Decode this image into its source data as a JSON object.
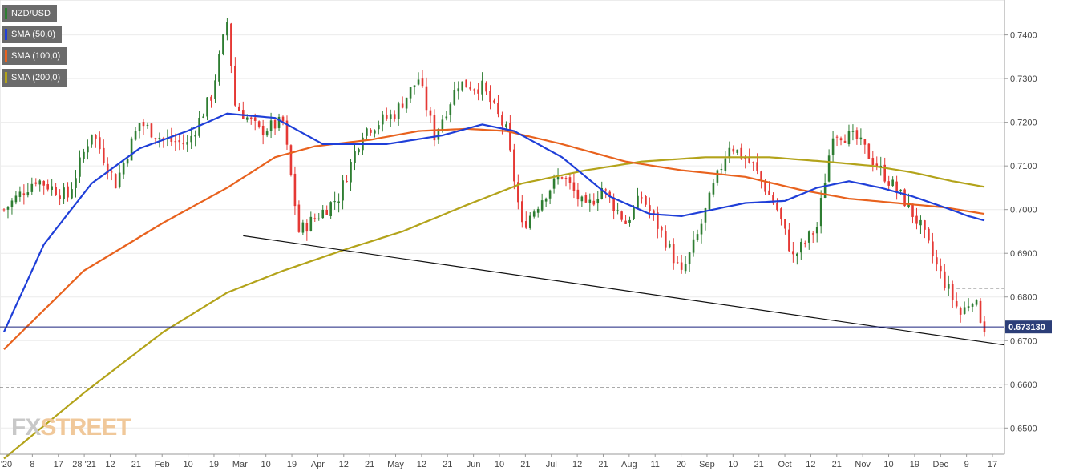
{
  "chart_data": {
    "type": "candlestick",
    "symbol": "NZD/USD",
    "ylim": [
      0.644,
      0.748
    ],
    "y_ticks": [
      "0.7400",
      "0.7300",
      "0.7200",
      "0.7100",
      "0.7000",
      "0.6900",
      "0.6800",
      "0.6700",
      "0.6600",
      "0.6500"
    ],
    "x_ticks": [
      "'20",
      "8",
      "17",
      "28 '21",
      "12",
      "21",
      "Feb",
      "10",
      "19",
      "Mar",
      "10",
      "19",
      "Apr",
      "12",
      "21",
      "May",
      "12",
      "21",
      "Jun",
      "10",
      "21",
      "Jul",
      "12",
      "21",
      "Aug",
      "11",
      "20",
      "Sep",
      "10",
      "21",
      "Oct",
      "12",
      "21",
      "Nov",
      "10",
      "19",
      "Dec",
      "9",
      "17"
    ],
    "last_price": "0.673130",
    "grid": true,
    "legend_position": "top-left",
    "legend": [
      {
        "label": "NZD/USD",
        "color": "#2e7d32"
      },
      {
        "label": "SMA (50,0)",
        "color": "#1f3fd8"
      },
      {
        "label": "SMA (100,0)",
        "color": "#e8621e"
      },
      {
        "label": "SMA (200,0)",
        "color": "#b3a31a"
      }
    ],
    "colors": {
      "up": "#2e7d32",
      "down": "#e53935",
      "sma50": "#1f3fd8",
      "sma100": "#e8621e",
      "sma200": "#b3a31a",
      "price_line": "#1a237e"
    },
    "sessions": 247,
    "close_anchors": [
      [
        0,
        0.7
      ],
      [
        8,
        0.707
      ],
      [
        16,
        0.703
      ],
      [
        22,
        0.718
      ],
      [
        28,
        0.706
      ],
      [
        34,
        0.72
      ],
      [
        40,
        0.716
      ],
      [
        46,
        0.715
      ],
      [
        52,
        0.726
      ],
      [
        56,
        0.743
      ],
      [
        58,
        0.724
      ],
      [
        64,
        0.718
      ],
      [
        70,
        0.72
      ],
      [
        74,
        0.695
      ],
      [
        78,
        0.698
      ],
      [
        84,
        0.703
      ],
      [
        90,
        0.718
      ],
      [
        98,
        0.722
      ],
      [
        104,
        0.73
      ],
      [
        108,
        0.717
      ],
      [
        114,
        0.729
      ],
      [
        120,
        0.728
      ],
      [
        126,
        0.718
      ],
      [
        130,
        0.696
      ],
      [
        136,
        0.704
      ],
      [
        140,
        0.708
      ],
      [
        146,
        0.7
      ],
      [
        150,
        0.705
      ],
      [
        156,
        0.697
      ],
      [
        160,
        0.703
      ],
      [
        166,
        0.693
      ],
      [
        170,
        0.685
      ],
      [
        174,
        0.694
      ],
      [
        178,
        0.705
      ],
      [
        182,
        0.715
      ],
      [
        188,
        0.71
      ],
      [
        194,
        0.7
      ],
      [
        198,
        0.689
      ],
      [
        204,
        0.696
      ],
      [
        208,
        0.718
      ],
      [
        214,
        0.716
      ],
      [
        220,
        0.709
      ],
      [
        226,
        0.702
      ],
      [
        230,
        0.696
      ],
      [
        234,
        0.687
      ],
      [
        240,
        0.676
      ],
      [
        243,
        0.68
      ],
      [
        246,
        0.6731
      ]
    ],
    "sma50": [
      [
        0,
        0.672
      ],
      [
        10,
        0.692
      ],
      [
        22,
        0.706
      ],
      [
        34,
        0.714
      ],
      [
        46,
        0.718
      ],
      [
        56,
        0.722
      ],
      [
        68,
        0.721
      ],
      [
        80,
        0.715
      ],
      [
        96,
        0.715
      ],
      [
        110,
        0.717
      ],
      [
        120,
        0.7195
      ],
      [
        128,
        0.718
      ],
      [
        140,
        0.712
      ],
      [
        152,
        0.703
      ],
      [
        162,
        0.699
      ],
      [
        170,
        0.6985
      ],
      [
        178,
        0.7
      ],
      [
        186,
        0.7015
      ],
      [
        196,
        0.702
      ],
      [
        204,
        0.705
      ],
      [
        212,
        0.7065
      ],
      [
        220,
        0.705
      ],
      [
        228,
        0.703
      ],
      [
        236,
        0.7005
      ],
      [
        242,
        0.6985
      ],
      [
        246,
        0.6975
      ]
    ],
    "sma100": [
      [
        0,
        0.668
      ],
      [
        20,
        0.686
      ],
      [
        40,
        0.697
      ],
      [
        56,
        0.705
      ],
      [
        68,
        0.712
      ],
      [
        78,
        0.7145
      ],
      [
        92,
        0.716
      ],
      [
        104,
        0.718
      ],
      [
        116,
        0.7185
      ],
      [
        126,
        0.718
      ],
      [
        140,
        0.715
      ],
      [
        156,
        0.711
      ],
      [
        170,
        0.709
      ],
      [
        186,
        0.7075
      ],
      [
        200,
        0.7045
      ],
      [
        212,
        0.7025
      ],
      [
        224,
        0.7015
      ],
      [
        236,
        0.7005
      ],
      [
        246,
        0.699
      ]
    ],
    "sma200": [
      [
        0,
        0.643
      ],
      [
        20,
        0.658
      ],
      [
        40,
        0.672
      ],
      [
        56,
        0.681
      ],
      [
        70,
        0.686
      ],
      [
        86,
        0.691
      ],
      [
        100,
        0.695
      ],
      [
        116,
        0.701
      ],
      [
        130,
        0.706
      ],
      [
        146,
        0.709
      ],
      [
        160,
        0.711
      ],
      [
        176,
        0.712
      ],
      [
        192,
        0.712
      ],
      [
        206,
        0.711
      ],
      [
        218,
        0.71
      ],
      [
        228,
        0.7085
      ],
      [
        238,
        0.7065
      ],
      [
        246,
        0.7052
      ]
    ],
    "trendline": {
      "from": [
        "Mar 23",
        0.694
      ],
      "to": [
        "Dec 17",
        0.669
      ]
    },
    "resistance_dashed": {
      "price": 0.682,
      "from_session": 239
    },
    "support_dashed": {
      "price": 0.6592
    }
  },
  "logo": {
    "part1": "FX",
    "part2": "STREET"
  }
}
